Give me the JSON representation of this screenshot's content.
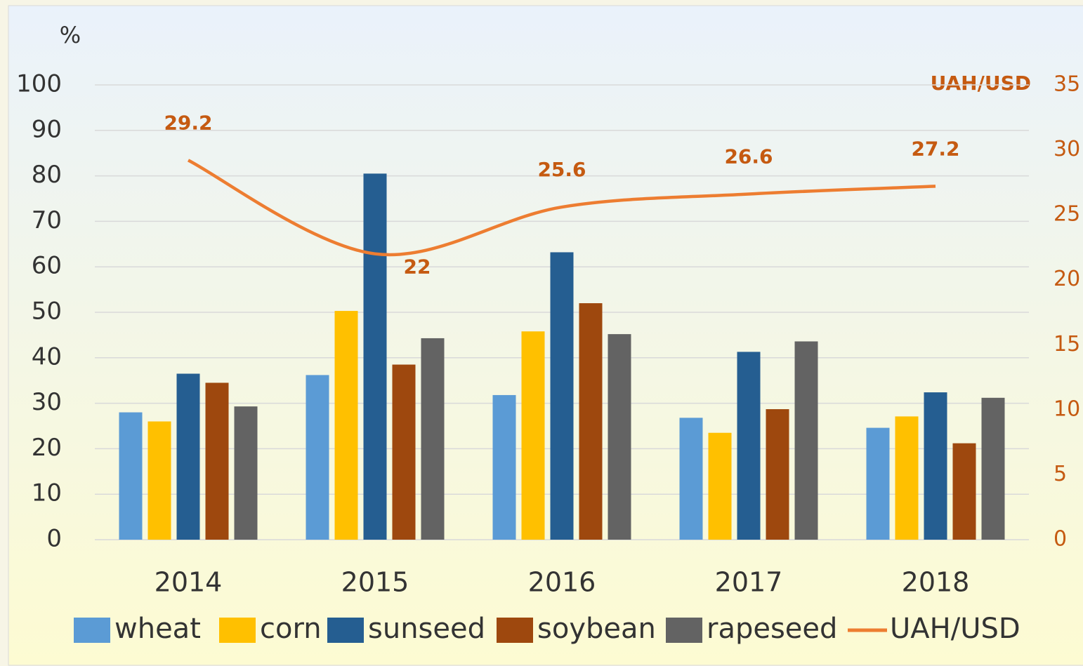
{
  "chart_data": {
    "type": "bar",
    "y_label": "%",
    "y2_label": "UAH/USD",
    "categories": [
      "2014",
      "2015",
      "2016",
      "2017",
      "2018"
    ],
    "series": [
      {
        "name": "wheat",
        "color": "#5b9bd5",
        "values": [
          28,
          36.2,
          31.8,
          26.8,
          24.6
        ]
      },
      {
        "name": "corn",
        "color": "#ffc000",
        "values": [
          26,
          50.3,
          45.8,
          23.5,
          27.1
        ]
      },
      {
        "name": "sunseed",
        "color": "#255e91",
        "values": [
          36.5,
          80.5,
          63.2,
          41.3,
          32.4
        ]
      },
      {
        "name": "soybean",
        "color": "#9e480e",
        "values": [
          34.5,
          38.5,
          52,
          28.7,
          21.2
        ]
      },
      {
        "name": "rapeseed",
        "color": "#636363",
        "values": [
          29.3,
          44.3,
          45.2,
          43.6,
          31.2
        ]
      },
      {
        "name": "UAH/USD",
        "type": "line",
        "axis": "y2",
        "color": "#ed7d31",
        "values": [
          29.2,
          22,
          25.6,
          26.6,
          27.2
        ]
      }
    ],
    "ylim": [
      0,
      100
    ],
    "yticks": [
      0,
      10,
      20,
      30,
      40,
      50,
      60,
      70,
      80,
      90,
      100
    ],
    "y2lim": [
      0,
      35
    ],
    "y2ticks": [
      0,
      5,
      10,
      15,
      20,
      25,
      30,
      35
    ],
    "grid": true,
    "legend": "bottom"
  }
}
